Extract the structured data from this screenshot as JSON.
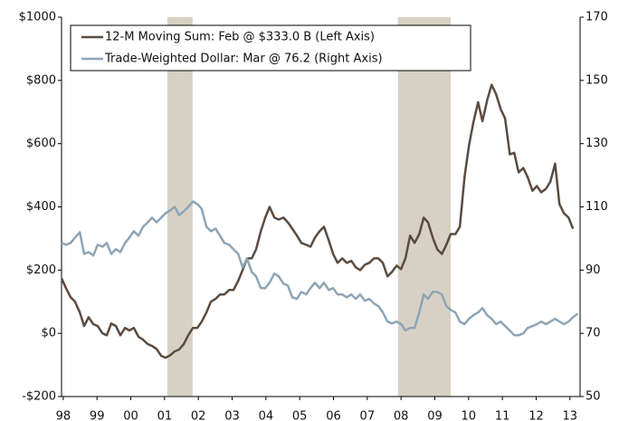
{
  "chart_data": {
    "type": "line",
    "legend_texts": null,
    "x": [
      1997.95,
      1998.08,
      1998.22,
      1998.35,
      1998.49,
      1998.62,
      1998.75,
      1998.89,
      1999.02,
      1999.16,
      1999.29,
      1999.42,
      1999.56,
      1999.69,
      1999.83,
      1999.96,
      2000.09,
      2000.23,
      2000.36,
      2000.5,
      2000.63,
      2000.76,
      2000.9,
      2001.03,
      2001.17,
      2001.3,
      2001.43,
      2001.57,
      2001.7,
      2001.84,
      2001.97,
      2002.1,
      2002.24,
      2002.37,
      2002.51,
      2002.64,
      2002.77,
      2002.91,
      2003.04,
      2003.18,
      2003.31,
      2003.44,
      2003.58,
      2003.71,
      2003.85,
      2003.98,
      2004.11,
      2004.25,
      2004.38,
      2004.52,
      2004.65,
      2004.78,
      2004.92,
      2005.05,
      2005.19,
      2005.32,
      2005.45,
      2005.59,
      2005.72,
      2005.86,
      2005.99,
      2006.12,
      2006.26,
      2006.39,
      2006.53,
      2006.66,
      2006.79,
      2006.93,
      2007.06,
      2007.2,
      2007.33,
      2007.46,
      2007.6,
      2007.73,
      2007.87,
      2008.0,
      2008.13,
      2008.27,
      2008.4,
      2008.54,
      2008.67,
      2008.8,
      2008.94,
      2009.07,
      2009.21,
      2009.34,
      2009.47,
      2009.61,
      2009.74,
      2009.88,
      2010.01,
      2010.14,
      2010.28,
      2010.41,
      2010.55,
      2010.68,
      2010.81,
      2010.95,
      2011.08,
      2011.22,
      2011.35,
      2011.48,
      2011.62,
      2011.75,
      2011.89,
      2012.02,
      2012.15,
      2012.29,
      2012.42,
      2012.56,
      2012.69,
      2012.82,
      2012.96,
      2013.09,
      2013.23
    ],
    "series": [
      {
        "name": "12-M Moving Sum: Feb @ $333.0 B (Left Axis)",
        "color": "#5b4b40",
        "values": [
          174,
          143,
          114,
          100,
          66,
          23,
          51,
          29,
          23,
          0,
          -6,
          31,
          23,
          -6,
          17,
          9,
          17,
          -11,
          -20,
          -34,
          -40,
          -49,
          -71,
          -77,
          -69,
          -57,
          -51,
          -34,
          -6,
          17,
          17,
          37,
          66,
          100,
          109,
          123,
          123,
          137,
          137,
          166,
          200,
          237,
          237,
          266,
          323,
          366,
          400,
          366,
          360,
          366,
          351,
          331,
          309,
          286,
          280,
          274,
          303,
          323,
          337,
          294,
          251,
          223,
          237,
          223,
          229,
          209,
          200,
          217,
          223,
          237,
          237,
          223,
          180,
          194,
          214,
          203,
          237,
          309,
          286,
          314,
          366,
          351,
          303,
          266,
          251,
          280,
          314,
          314,
          337,
          494,
          594,
          666,
          731,
          671,
          737,
          786,
          757,
          709,
          680,
          566,
          571,
          509,
          523,
          494,
          451,
          466,
          446,
          457,
          480,
          537,
          409,
          380,
          366,
          331,
          null
        ]
      },
      {
        "name": "Trade-Weighted Dollar: Mar @ 76.2 (Right Axis)",
        "color": "#8ea5b6",
        "axis": "y2",
        "values": [
          98.6,
          98,
          98.6,
          100.3,
          102,
          95.1,
          95.7,
          94.6,
          98,
          97.4,
          98.6,
          95.1,
          96.6,
          95.7,
          98.6,
          100.3,
          102.3,
          100.9,
          103.7,
          105.1,
          106.6,
          105.1,
          106.6,
          108,
          108.9,
          110,
          107.4,
          108.6,
          110,
          111.7,
          110.9,
          109.4,
          103.7,
          102.3,
          103.1,
          100.9,
          98.6,
          98,
          96.6,
          95.1,
          90.9,
          93.7,
          89.4,
          88,
          84.3,
          84.3,
          86,
          88.9,
          88,
          85.7,
          85.1,
          81.4,
          80.9,
          83.1,
          82.3,
          84.3,
          86,
          84.3,
          86,
          83.7,
          84.3,
          82.3,
          82.3,
          81.4,
          82.3,
          80.9,
          82.3,
          80.3,
          80.9,
          79.4,
          78.6,
          76.6,
          73.7,
          73.1,
          73.7,
          72.9,
          70.9,
          71.7,
          71.7,
          76.6,
          82.3,
          80.9,
          83.1,
          83.1,
          82.3,
          78.6,
          77.4,
          76.6,
          73.7,
          72.9,
          74.6,
          75.7,
          76.6,
          78,
          75.7,
          74.6,
          72.9,
          73.7,
          72.3,
          70.9,
          69.4,
          69.4,
          70,
          71.7,
          72.3,
          72.9,
          73.7,
          72.9,
          73.7,
          74.6,
          73.7,
          72.9,
          73.7,
          75.1,
          76.2
        ]
      }
    ],
    "shaded_regions": [
      [
        2001.08,
        2001.83
      ],
      [
        2007.91,
        2009.47
      ]
    ],
    "shaded_color": "#d7d1c5",
    "xlim": [
      1997.95,
      2013.3
    ],
    "xticks": [
      {
        "value": 1998,
        "label": "98"
      },
      {
        "value": 1999,
        "label": "99"
      },
      {
        "value": 2000,
        "label": "00"
      },
      {
        "value": 2001,
        "label": "01"
      },
      {
        "value": 2002,
        "label": "02"
      },
      {
        "value": 2003,
        "label": "03"
      },
      {
        "value": 2004,
        "label": "04"
      },
      {
        "value": 2005,
        "label": "05"
      },
      {
        "value": 2006,
        "label": "06"
      },
      {
        "value": 2007,
        "label": "07"
      },
      {
        "value": 2008,
        "label": "08"
      },
      {
        "value": 2009,
        "label": "09"
      },
      {
        "value": 2010,
        "label": "10"
      },
      {
        "value": 2011,
        "label": "11"
      },
      {
        "value": 2012,
        "label": "12"
      },
      {
        "value": 2013,
        "label": "13"
      }
    ],
    "ylim": [
      -200,
      1000
    ],
    "yticks": [
      {
        "value": -200,
        "label": "-$200"
      },
      {
        "value": 0,
        "label": "$0"
      },
      {
        "value": 200,
        "label": "$200"
      },
      {
        "value": 400,
        "label": "$400"
      },
      {
        "value": 600,
        "label": "$600"
      },
      {
        "value": 800,
        "label": "$800"
      },
      {
        "value": 1000,
        "label": "$1000"
      }
    ],
    "y2lim": [
      50,
      170
    ],
    "y2ticks": [
      50,
      70,
      90,
      110,
      130,
      150,
      170
    ],
    "legend": "upper left"
  }
}
